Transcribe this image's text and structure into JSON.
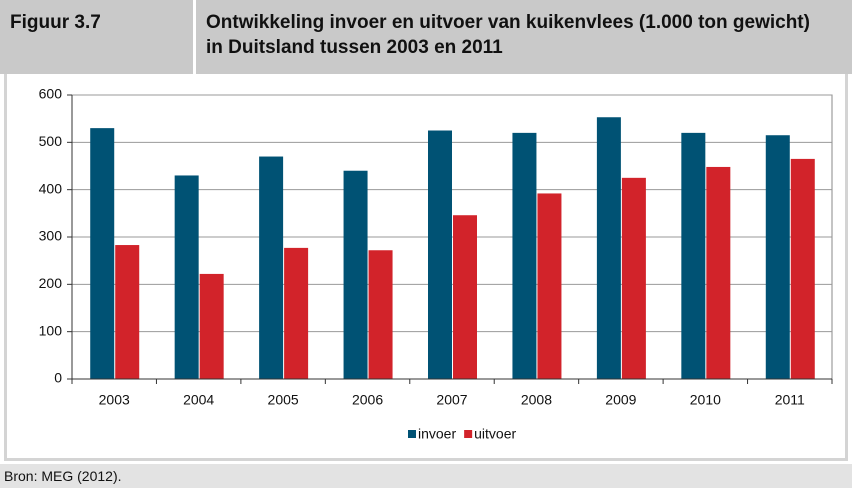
{
  "figure_label": "Figuur 3.7",
  "source": "Bron: MEG  (2012).",
  "chart_data": {
    "type": "bar",
    "title": "Ontwikkeling invoer en uitvoer van kuikenvlees (1.000 ton gewicht) in Duitsland tussen 2003 en 2011",
    "categories": [
      "2003",
      "2004",
      "2005",
      "2006",
      "2007",
      "2008",
      "2009",
      "2010",
      "2011"
    ],
    "series": [
      {
        "name": "invoer",
        "color": "#005274",
        "values": [
          530,
          430,
          470,
          440,
          525,
          520,
          553,
          520,
          515
        ]
      },
      {
        "name": "uitvoer",
        "color": "#d2232a",
        "values": [
          283,
          222,
          277,
          272,
          346,
          392,
          425,
          448,
          465
        ]
      }
    ],
    "ylim": [
      0,
      600
    ],
    "yticks": [
      0,
      100,
      200,
      300,
      400,
      500,
      600
    ],
    "grid": true,
    "legend": "bottom"
  }
}
